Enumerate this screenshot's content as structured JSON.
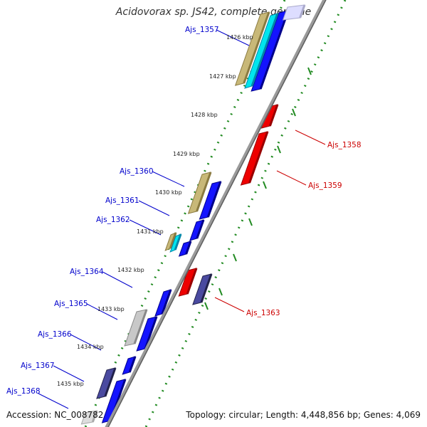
{
  "title": "Acidovorax sp. JS42, complete genome",
  "accession_label": "Accession: NC_008782",
  "topology_label": "Topology: circular; Length: 4,448,856 bp; Genes: 4,069",
  "colors": {
    "forward_label": "#0000cc",
    "reverse_label": "#cc0000",
    "tick_dots": "#228b22",
    "backbone": "#808080"
  },
  "kbp_ticks": [
    {
      "label": "1426 kbp"
    },
    {
      "label": "1427 kbp"
    },
    {
      "label": "1428 kbp"
    },
    {
      "label": "1429 kbp"
    },
    {
      "label": "1430 kbp"
    },
    {
      "label": "1431 kbp"
    },
    {
      "label": "1432 kbp"
    },
    {
      "label": "1433 kbp"
    },
    {
      "label": "1434 kbp"
    },
    {
      "label": "1435 kbp"
    }
  ],
  "genes": [
    {
      "name": "Ajs_1357",
      "strand": "forward"
    },
    {
      "name": "Ajs_1358",
      "strand": "reverse"
    },
    {
      "name": "Ajs_1359",
      "strand": "reverse"
    },
    {
      "name": "Ajs_1360",
      "strand": "forward"
    },
    {
      "name": "Ajs_1361",
      "strand": "forward"
    },
    {
      "name": "Ajs_1362",
      "strand": "forward"
    },
    {
      "name": "Ajs_1363",
      "strand": "reverse"
    },
    {
      "name": "Ajs_1364",
      "strand": "forward"
    },
    {
      "name": "Ajs_1365",
      "strand": "forward"
    },
    {
      "name": "Ajs_1366",
      "strand": "forward"
    },
    {
      "name": "Ajs_1367",
      "strand": "forward"
    },
    {
      "name": "Ajs_1368",
      "strand": "forward"
    }
  ]
}
